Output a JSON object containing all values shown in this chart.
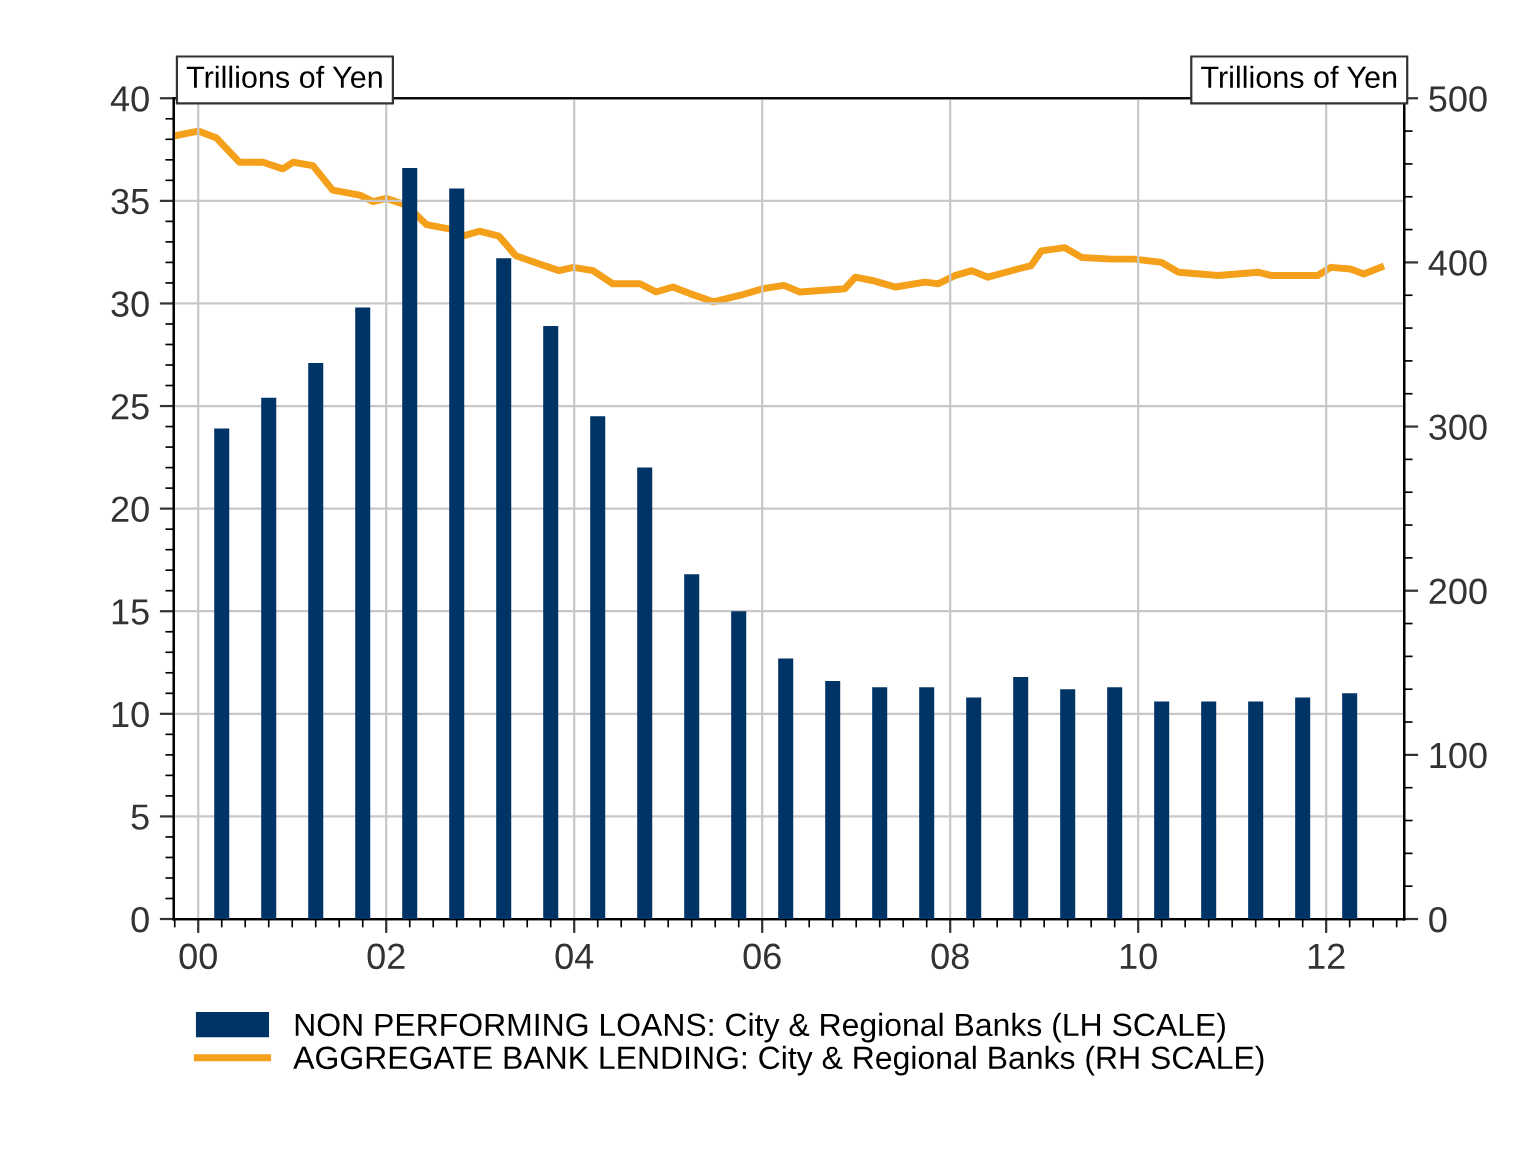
{
  "chart_data": {
    "type": "bar",
    "ylabel": "Trillions of Yen",
    "y2label": "Trillions of Yen",
    "xlim": [
      1999.74,
      2012.83
    ],
    "xticks": [
      {
        "value": 2000,
        "label": "00"
      },
      {
        "value": 2002,
        "label": "02"
      },
      {
        "value": 2004,
        "label": "04"
      },
      {
        "value": 2006,
        "label": "06"
      },
      {
        "value": 2008,
        "label": "08"
      },
      {
        "value": 2010,
        "label": "10"
      },
      {
        "value": 2012,
        "label": "12"
      }
    ],
    "ylim": [
      0,
      40
    ],
    "yticks": [
      0,
      5,
      10,
      15,
      20,
      25,
      30,
      35,
      40
    ],
    "y2lim": [
      0,
      500
    ],
    "y2ticks": [
      0,
      100,
      200,
      300,
      400,
      500
    ],
    "grid": true,
    "legend": "bottom",
    "series": [
      {
        "name": "NON PERFORMING LOANS: City & Regional Banks (LH SCALE)",
        "color": "#003366",
        "x": [
          2000.25,
          2000.75,
          2001.25,
          2001.75,
          2002.25,
          2002.75,
          2003.25,
          2003.75,
          2004.25,
          2004.75,
          2005.25,
          2005.75,
          2006.25,
          2006.75,
          2007.25,
          2007.75,
          2008.25,
          2008.75,
          2009.25,
          2009.75,
          2010.25,
          2010.75,
          2011.25,
          2011.75,
          2012.25
        ],
        "values": [
          23.9,
          25.4,
          27.1,
          29.8,
          36.6,
          35.6,
          32.2,
          28.9,
          24.5,
          22.0,
          16.8,
          15.0,
          12.7,
          11.6,
          11.3,
          11.3,
          10.8,
          11.8,
          11.2,
          11.3,
          10.6,
          10.6,
          10.6,
          10.8,
          11.0
        ]
      },
      {
        "name": "AGGREGATE BANK LENDING: City & Regional Banks (RH SCALE)",
        "type": "line",
        "axis": "y2",
        "color": "#f5a01a",
        "x": [
          1999.74,
          2000.0,
          2000.19,
          2000.44,
          2000.69,
          2000.9,
          2001.01,
          2001.22,
          2001.43,
          2001.72,
          2001.86,
          2002.0,
          2002.21,
          2002.43,
          2002.71,
          2002.81,
          2002.99,
          2003.2,
          2003.38,
          2003.63,
          2003.84,
          2003.99,
          2004.2,
          2004.41,
          2004.7,
          2004.87,
          2005.05,
          2005.23,
          2005.48,
          2005.77,
          2006.01,
          2006.23,
          2006.4,
          2006.88,
          2006.99,
          2007.17,
          2007.42,
          2007.73,
          2007.87,
          2008.05,
          2008.23,
          2008.4,
          2008.72,
          2008.86,
          2008.97,
          2009.22,
          2009.4,
          2009.72,
          2009.96,
          2010.25,
          2010.43,
          2010.85,
          2011.28,
          2011.42,
          2011.91,
          2012.05,
          2012.26,
          2012.4,
          2012.58
        ],
        "values": [
          477,
          480,
          476,
          461,
          461,
          457,
          461,
          459,
          444,
          441,
          437,
          439,
          435,
          423,
          420,
          416,
          419,
          416,
          404,
          399,
          395,
          397,
          395,
          387,
          387,
          382,
          385,
          381,
          376,
          380,
          384,
          386,
          382,
          384,
          391,
          389,
          385,
          388,
          387,
          392,
          395,
          391,
          396,
          398,
          407,
          409,
          403,
          402,
          402,
          400,
          394,
          392,
          394,
          392,
          392,
          397,
          396,
          393,
          397
        ]
      }
    ]
  }
}
